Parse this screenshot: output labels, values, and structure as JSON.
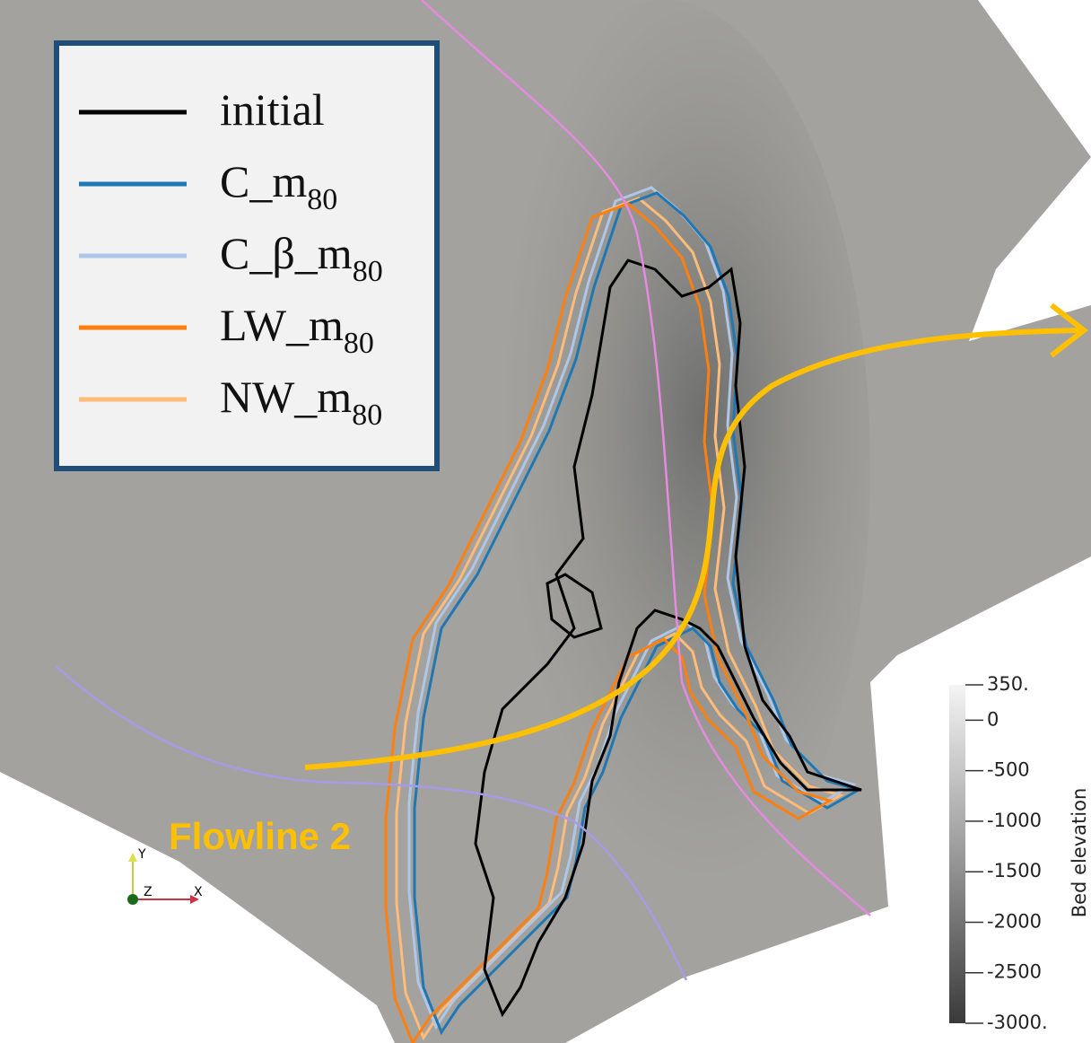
{
  "legend": {
    "entries": [
      {
        "name": "initial",
        "color": "#000000"
      },
      {
        "name": "C_m",
        "sub": "80",
        "color": "#1f77b4"
      },
      {
        "name": "C_β_m",
        "sub": "80",
        "color": "#aec7e8"
      },
      {
        "name": "LW_m",
        "sub": "80",
        "color": "#ff7f0e"
      },
      {
        "name": "NW_m",
        "sub": "80",
        "color": "#ffbb78"
      }
    ]
  },
  "flowline_label": "Flowline 2",
  "axes_triad": {
    "y": "Y",
    "z": "Z",
    "x": "X"
  },
  "colorbar": {
    "title": "Bed elevation",
    "lim": [
      350,
      -3000
    ],
    "ticks": [
      {
        "value": 350,
        "label": "350."
      },
      0,
      -500,
      -1000,
      -1500,
      -2000,
      -2500,
      {
        "value": -3000,
        "label": "-3000."
      }
    ]
  }
}
